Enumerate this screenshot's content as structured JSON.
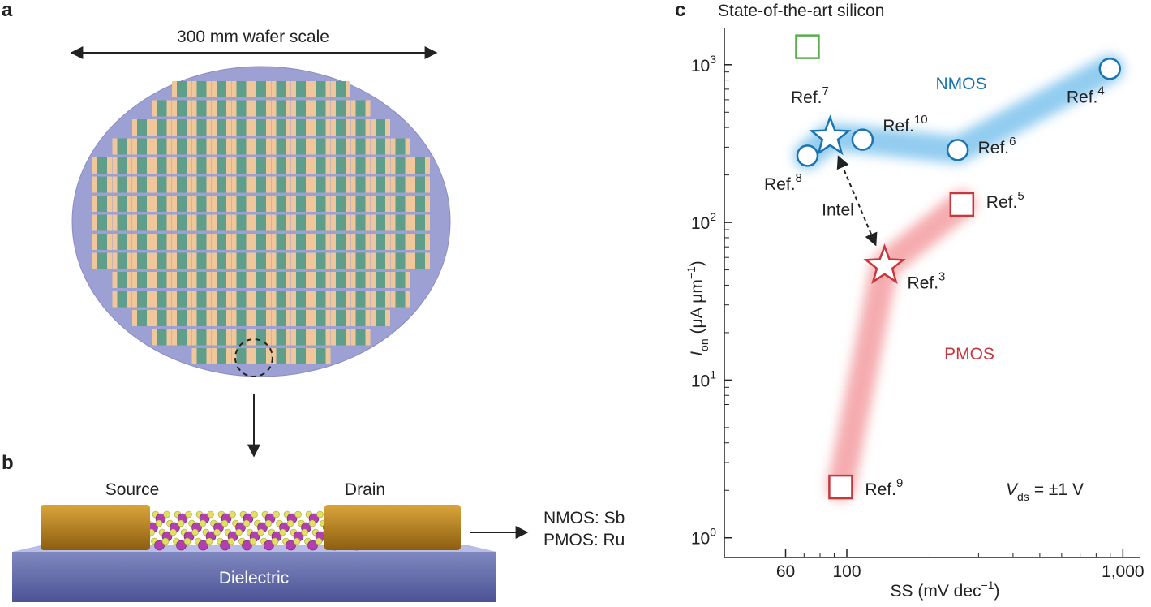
{
  "panels": {
    "a": {
      "letter": "a",
      "scale_label": "300 mm wafer scale"
    },
    "b": {
      "letter": "b",
      "source": "Source",
      "drain": "Drain",
      "contacts": [
        "NMOS: Sb",
        "PMOS: Ru"
      ],
      "substrate": "Dielectric"
    }
  },
  "chart_data": {
    "type": "scatter",
    "letter": "c",
    "title": "State-of-the-art silicon",
    "xlabel": {
      "text": "SS (mV dec",
      "sup": "−1",
      "close": ")"
    },
    "ylabel": {
      "symbol": "I",
      "sub": "on",
      "text": " (μA μm",
      "sup": "−1",
      "close": ")"
    },
    "log_x": true,
    "log_y": true,
    "xlim": [
      36,
      1150
    ],
    "ylim": [
      0.75,
      1700
    ],
    "xticks": [
      60,
      100,
      {
        "value": 1000,
        "label": "1,000"
      }
    ],
    "xminorticks": [
      70,
      80,
      90,
      200,
      300,
      400,
      500,
      600,
      700,
      800,
      900
    ],
    "yticks": [
      {
        "value": 1,
        "label": "10",
        "exp": "0"
      },
      {
        "value": 10,
        "label": "10",
        "exp": "1"
      },
      {
        "value": 100,
        "label": "10",
        "exp": "2"
      },
      {
        "value": 1000,
        "label": "10",
        "exp": "3"
      }
    ],
    "yminorticks": [
      2,
      3,
      4,
      5,
      6,
      7,
      8,
      9,
      20,
      30,
      40,
      50,
      60,
      70,
      80,
      90,
      200,
      300,
      400,
      500,
      600,
      700,
      800,
      900
    ],
    "ref_prefix": "Ref.",
    "series": [
      {
        "name": "NMOS",
        "color": "#1a74b0",
        "band_color": "#86c6ee",
        "x": [
          72,
          87,
          114,
          252,
          897
        ],
        "values": [
          265,
          348,
          335,
          288,
          943
        ],
        "markers": [
          "circle",
          "star",
          "circle",
          "circle",
          "circle"
        ],
        "labels": [
          "8",
          "7",
          "10",
          "6",
          "4"
        ]
      },
      {
        "name": "PMOS",
        "color": "#c7373e",
        "band_color": "#f4a3a6",
        "x": [
          95,
          137,
          261
        ],
        "values": [
          2.1,
          53,
          130
        ],
        "markers": [
          "square",
          "star",
          "square"
        ],
        "labels": [
          "9",
          "3",
          "5"
        ]
      },
      {
        "x": [
          72
        ],
        "values": [
          1300
        ],
        "color": "#5aad4e",
        "markers": [
          "square"
        ]
      }
    ],
    "arrow_label": "Intel",
    "condition": {
      "symbol": "V",
      "sub": "ds",
      "text": "= ±1 V"
    }
  }
}
